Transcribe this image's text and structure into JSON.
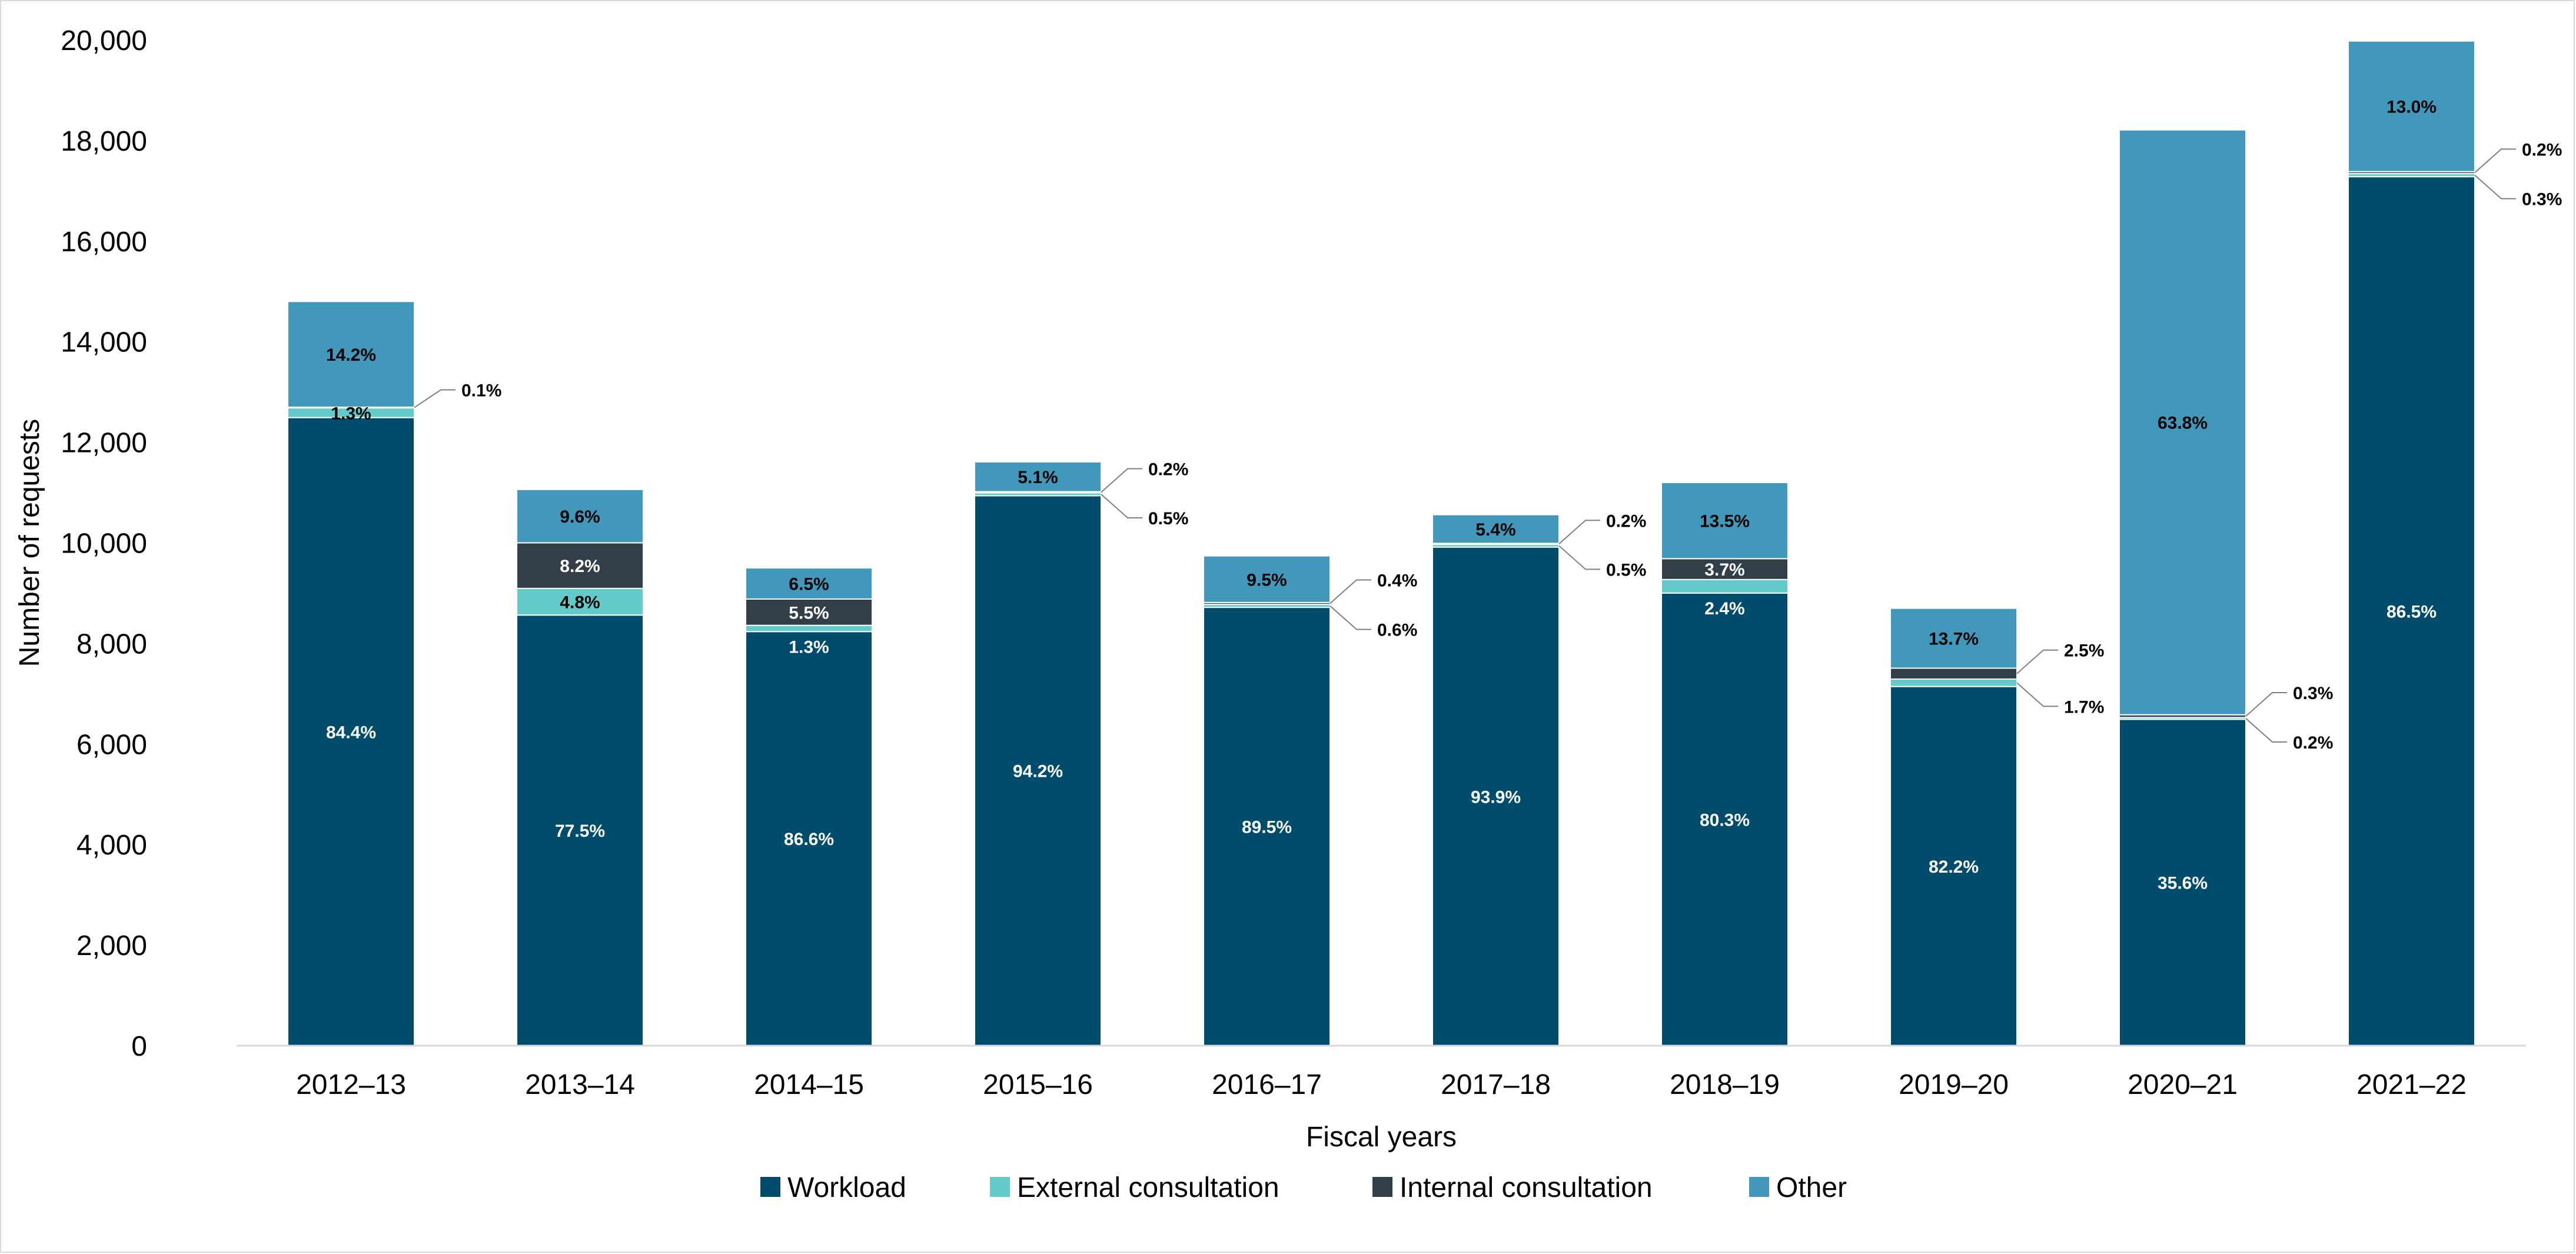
{
  "chart_data": {
    "type": "bar",
    "stacked": true,
    "xlabel": "Fiscal years",
    "ylabel": "Number of requests",
    "ylim": [
      0,
      20000
    ],
    "yticks": [
      "0",
      "2,000",
      "4,000",
      "6,000",
      "8,000",
      "10,000",
      "12,000",
      "14,000",
      "16,000",
      "18,000",
      "20,000"
    ],
    "grid": false,
    "legend_position": "bottom",
    "categories": [
      "2012–13",
      "2013–14",
      "2014–15",
      "2015–16",
      "2016–17",
      "2017–18",
      "2018–19",
      "2019–20",
      "2020–21",
      "2021–22"
    ],
    "totals": [
      14800,
      11050,
      9510,
      11610,
      9740,
      10560,
      11210,
      8690,
      18230,
      19980
    ],
    "series": [
      {
        "name": "Workload",
        "color": "#004C6D",
        "shares": [
          84.4,
          77.5,
          86.6,
          94.2,
          89.5,
          93.9,
          80.3,
          82.2,
          35.6,
          86.5
        ],
        "labels": [
          "84.4%",
          "77.5%",
          "86.6%",
          "94.2%",
          "89.5%",
          "93.9%",
          "80.3%",
          "82.2%",
          "35.6%",
          "86.5%"
        ]
      },
      {
        "name": "External consultation",
        "color": "#62CBC9",
        "shares": [
          1.3,
          4.8,
          1.3,
          0.5,
          0.6,
          0.5,
          2.4,
          1.7,
          0.2,
          0.3
        ],
        "labels": [
          "1.3%",
          "4.8%",
          "1.3%",
          "0.5%",
          "0.6%",
          "0.5%",
          "2.4%",
          "1.7%",
          "0.2%",
          "0.3%"
        ]
      },
      {
        "name": "Internal consultation",
        "color": "#323E48",
        "shares": [
          0.1,
          8.2,
          5.5,
          0.2,
          0.4,
          0.2,
          3.7,
          2.5,
          0.3,
          0.2
        ],
        "labels": [
          "0.1%",
          "8.2%",
          "5.5%",
          "0.2%",
          "0.4%",
          "0.2%",
          "3.7%",
          "2.5%",
          "0.3%",
          "0.2%"
        ]
      },
      {
        "name": "Other",
        "color": "#4198BB",
        "shares": [
          14.2,
          9.6,
          6.5,
          5.1,
          9.5,
          5.4,
          13.5,
          13.7,
          63.8,
          13.0
        ],
        "labels": [
          "14.2%",
          "9.6%",
          "6.5%",
          "5.1%",
          "9.5%",
          "5.4%",
          "13.5%",
          "13.7%",
          "63.8%",
          "13.0%"
        ]
      }
    ]
  }
}
